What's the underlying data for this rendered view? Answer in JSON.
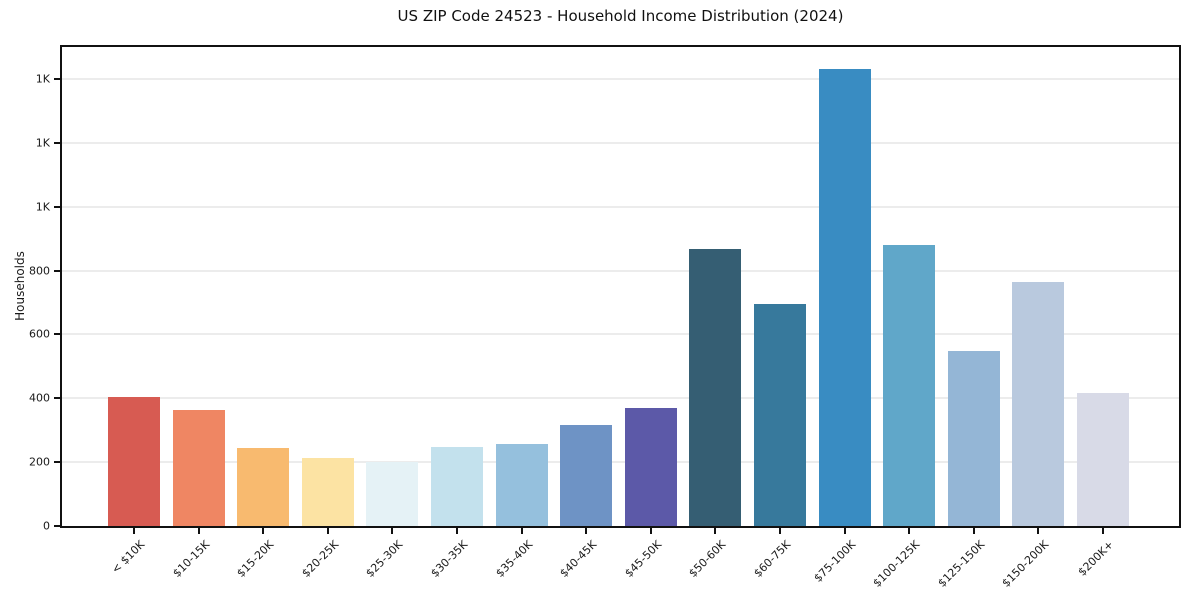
{
  "chart_data": {
    "type": "bar",
    "title": "US ZIP Code 24523 - Household Income Distribution (2024)",
    "xlabel": "",
    "ylabel": "Households",
    "categories": [
      "< $10K",
      "$10-15K",
      "$15-20K",
      "$20-25K",
      "$25-30K",
      "$30-35K",
      "$35-40K",
      "$40-45K",
      "$45-50K",
      "$50-60K",
      "$60-75K",
      "$75-100K",
      "$100-125K",
      "$125-150K",
      "$150-200K",
      "$200K+"
    ],
    "values": [
      405,
      362,
      243,
      214,
      201,
      247,
      256,
      315,
      371,
      868,
      696,
      1432,
      880,
      547,
      765,
      417
    ],
    "bar_colors": [
      "#d75b52",
      "#ef8663",
      "#f8ba6f",
      "#fce3a3",
      "#e5f2f6",
      "#c3e1ed",
      "#95c0dd",
      "#6e93c5",
      "#5c59a8",
      "#355e73",
      "#37799c",
      "#398cc2",
      "#60a7c9",
      "#94b6d6",
      "#b9c9de",
      "#d8dae7"
    ],
    "ylim": [
      0,
      1500
    ],
    "yticks": [
      {
        "value": 0,
        "label": "0"
      },
      {
        "value": 200,
        "label": "200"
      },
      {
        "value": 400,
        "label": "400"
      },
      {
        "value": 600,
        "label": "600"
      },
      {
        "value": 800,
        "label": "800"
      },
      {
        "value": 1000,
        "label": "1K"
      },
      {
        "value": 1200,
        "label": "1K"
      },
      {
        "value": 1400,
        "label": "1K"
      }
    ],
    "grid": "horizontal",
    "legend": "none",
    "background_color": "#ffffff",
    "spine_color": "#111111",
    "gridline_color": "#ececec",
    "text_color": "#1a1a1a"
  }
}
